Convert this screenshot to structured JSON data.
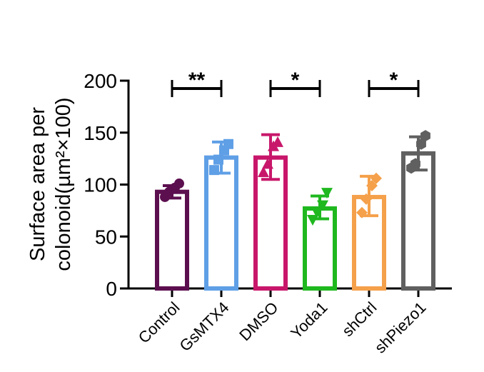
{
  "chart_data": {
    "type": "bar",
    "title": "",
    "ylabel_line1": "Surface area per",
    "ylabel_line2": "colonoid(µm²×100)",
    "xlabel": "",
    "ylim": [
      0,
      200
    ],
    "yticks": [
      0,
      50,
      100,
      150,
      200
    ],
    "ytick_labels": [
      "0",
      "50",
      "100",
      "150",
      "200"
    ],
    "categories": [
      "Control",
      "GsMTX4",
      "DMSO",
      "Yoda1",
      "shCtrl",
      "shPiezo1"
    ],
    "colors": [
      "#5c0f4f",
      "#5f9fe6",
      "#c8176b",
      "#1fb81f",
      "#f5a04a",
      "#606060"
    ],
    "markers": [
      "circle",
      "square",
      "triangle",
      "triangle-down",
      "diamond",
      "hexagon"
    ],
    "values": [
      93,
      126,
      126,
      77,
      88,
      130
    ],
    "error_upper": [
      99,
      141,
      148,
      89,
      108,
      146
    ],
    "error_lower": [
      87,
      111,
      105,
      67,
      70,
      114
    ],
    "points": [
      [
        88,
        93,
        97,
        101
      ],
      [
        114,
        124,
        133,
        139
      ],
      [
        112,
        120,
        137,
        141
      ],
      [
        66,
        73,
        80,
        92
      ],
      [
        73,
        86,
        99,
        106
      ],
      [
        116,
        120,
        139,
        147
      ]
    ],
    "significance": [
      {
        "from": 0,
        "to": 1,
        "label": "**"
      },
      {
        "from": 2,
        "to": 3,
        "label": "*"
      },
      {
        "from": 4,
        "to": 5,
        "label": "*"
      }
    ]
  }
}
